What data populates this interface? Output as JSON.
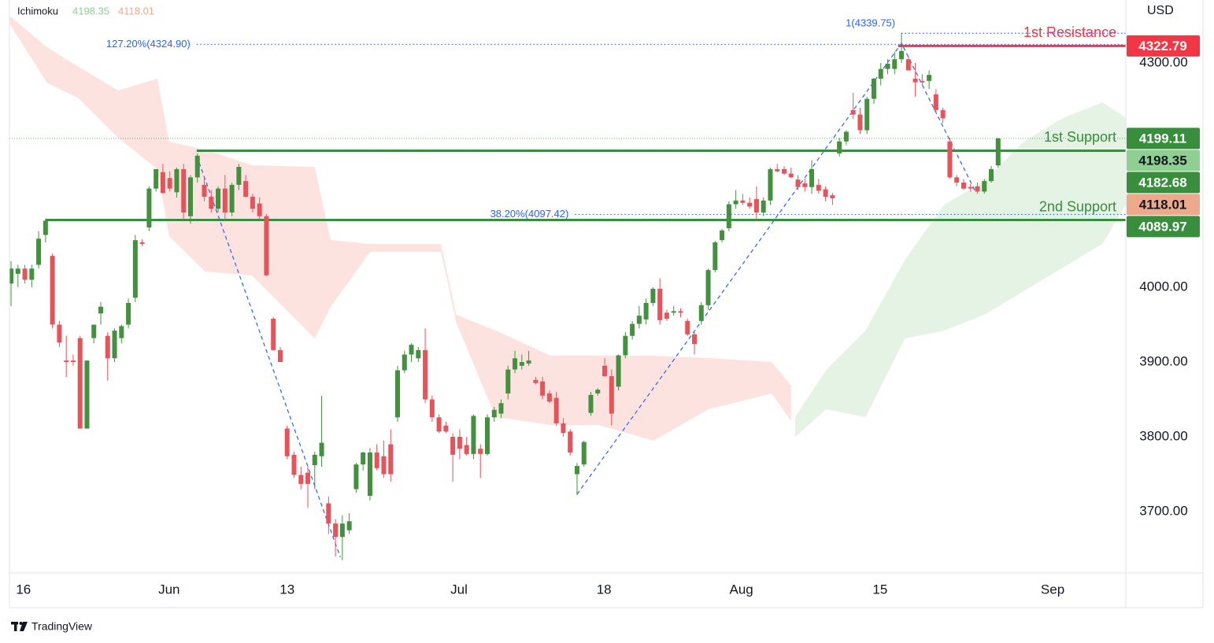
{
  "chart_data": {
    "type": "candlestick",
    "brand": "TradingView",
    "indicator": {
      "name": "Ichimoku",
      "values": [
        4198.35,
        4118.01
      ],
      "colors": [
        "#8fcf91",
        "#eda98c"
      ]
    },
    "currency": "USD",
    "up_color": "#43913f",
    "down_color": "#e5535b",
    "last_price_color": "#388e3c",
    "open": [
      4005,
      4018,
      4025,
      4010,
      4030,
      4070,
      4042,
      3950,
      3902,
      3902,
      3932,
      3811,
      3932,
      3965,
      3935,
      3905,
      3932,
      3950,
      3986,
      4060,
      4080,
      4132,
      4154,
      4146,
      4127,
      4158,
      4095,
      4147,
      4137,
      4121,
      4105,
      4132,
      4100,
      4137,
      4142,
      4121,
      4112,
      4095,
      3958,
      3916,
      3811,
      3776,
      3749,
      3752,
      3762,
      3774,
      3711,
      3684,
      3666,
      3675,
      3730,
      3763,
      3721,
      3779,
      3774,
      3790,
      3826,
      3889,
      3910,
      3905,
      3916,
      3850,
      3826,
      3815,
      3800,
      3800,
      3789,
      3777,
      3784,
      3777,
      3826,
      3831,
      3858,
      3890,
      3895,
      3898,
      3876,
      3874,
      3858,
      3852,
      3818,
      3807,
      3750,
      3763,
      3832,
      3858,
      3895,
      3881,
      3867,
      3909,
      3935,
      3951,
      3957,
      3979,
      3998,
      3966,
      3966,
      3968,
      3955,
      3937,
      3955,
      3976,
      4023,
      4063,
      4079,
      4111,
      4116,
      4113,
      4118,
      4100,
      4116,
      4158,
      4158,
      4152,
      4144,
      4139,
      4134,
      4137,
      4131,
      4123,
      4179,
      4195,
      4237,
      4231,
      4210,
      4252,
      4279,
      4292,
      4292,
      4305,
      4305,
      4279,
      4276,
      4276,
      4258,
      4237,
      4195,
      4147,
      4140,
      4134,
      4135,
      4128,
      4142,
      4163
    ],
    "high": [
      4035,
      4030,
      4030,
      4030,
      4075,
      4092,
      4045,
      3955,
      3935,
      3910,
      3935,
      3902,
      3950,
      3980,
      3940,
      3945,
      3950,
      3985,
      4070,
      4064,
      4135,
      4158,
      4165,
      4155,
      4160,
      4165,
      4150,
      4179,
      4145,
      4130,
      4135,
      4150,
      4140,
      4165,
      4150,
      4125,
      4120,
      4098,
      3960,
      3920,
      3815,
      3780,
      3760,
      3760,
      3780,
      3855,
      3720,
      3690,
      3695,
      3698,
      3765,
      3780,
      3785,
      3790,
      3795,
      3810,
      3895,
      3915,
      3925,
      3920,
      3945,
      3855,
      3830,
      3820,
      3805,
      3810,
      3800,
      3830,
      3790,
      3830,
      3840,
      3850,
      3895,
      3915,
      3910,
      3915,
      3880,
      3880,
      3862,
      3860,
      3825,
      3810,
      3765,
      3795,
      3860,
      3865,
      3905,
      3890,
      3910,
      3940,
      3955,
      3975,
      3985,
      4000,
      4012,
      3970,
      3975,
      3972,
      3958,
      3940,
      3980,
      4025,
      4062,
      4078,
      4115,
      4130,
      4125,
      4120,
      4135,
      4120,
      4160,
      4165,
      4162,
      4160,
      4150,
      4145,
      4170,
      4145,
      4135,
      4126,
      4200,
      4210,
      4260,
      4240,
      4255,
      4280,
      4300,
      4305,
      4315,
      4340,
      4310,
      4300,
      4285,
      4290,
      4265,
      4240,
      4200,
      4150,
      4145,
      4138,
      4140,
      4145,
      4162,
      4200
    ],
    "low": [
      3975,
      4000,
      4005,
      4000,
      4025,
      4060,
      3945,
      3920,
      3880,
      3895,
      3811,
      3811,
      3925,
      3950,
      3875,
      3900,
      3925,
      3945,
      3980,
      4055,
      4075,
      4128,
      4125,
      4128,
      4120,
      4090,
      4085,
      4140,
      4115,
      4100,
      4100,
      4090,
      4095,
      4130,
      4120,
      4100,
      4090,
      4015,
      3915,
      3900,
      3770,
      3745,
      3730,
      3705,
      3730,
      3760,
      3670,
      3640,
      3635,
      3670,
      3725,
      3755,
      3715,
      3755,
      3745,
      3740,
      3820,
      3885,
      3900,
      3900,
      3845,
      3820,
      3805,
      3805,
      3740,
      3770,
      3775,
      3770,
      3745,
      3775,
      3820,
      3825,
      3850,
      3885,
      3890,
      3895,
      3870,
      3850,
      3845,
      3815,
      3800,
      3775,
      3722,
      3760,
      3828,
      3855,
      3880,
      3815,
      3862,
      3905,
      3930,
      3945,
      3950,
      3975,
      3950,
      3955,
      3962,
      3960,
      3935,
      3910,
      3950,
      3970,
      4020,
      4060,
      4075,
      4105,
      4110,
      4105,
      4090,
      4095,
      4110,
      4154,
      4150,
      4146,
      4130,
      4128,
      4125,
      4125,
      4115,
      4110,
      4175,
      4190,
      4225,
      4205,
      4205,
      4245,
      4270,
      4285,
      4285,
      4300,
      4290,
      4255,
      4270,
      4265,
      4235,
      4220,
      4145,
      4135,
      4130,
      4128,
      4125,
      4125,
      4140,
      4160
    ],
    "close": [
      4025,
      4025,
      4010,
      4025,
      4065,
      4089,
      3950,
      3926,
      3900,
      3900,
      3811,
      3902,
      3950,
      3974,
      3905,
      3942,
      3948,
      3979,
      4063,
      4058,
      4132,
      4158,
      4126,
      4132,
      4158,
      4100,
      4147,
      4176,
      4121,
      4105,
      4132,
      4100,
      4137,
      4161,
      4121,
      4105,
      4095,
      4016,
      3916,
      3900,
      3774,
      3749,
      3737,
      3737,
      3776,
      3792,
      3684,
      3666,
      3684,
      3687,
      3763,
      3779,
      3779,
      3758,
      3750,
      3750,
      3889,
      3910,
      3923,
      3916,
      3850,
      3826,
      3807,
      3807,
      3776,
      3784,
      3777,
      3828,
      3777,
      3826,
      3836,
      3845,
      3890,
      3905,
      3900,
      3902,
      3872,
      3855,
      3847,
      3818,
      3805,
      3779,
      3761,
      3793,
      3856,
      3863,
      3881,
      3831,
      3909,
      3935,
      3951,
      3962,
      3979,
      3998,
      3956,
      3958,
      3968,
      3966,
      3937,
      3924,
      3976,
      4023,
      4060,
      4076,
      4111,
      4116,
      4113,
      4108,
      4100,
      4116,
      4158,
      4155,
      4152,
      4147,
      4134,
      4134,
      4158,
      4129,
      4121,
      4119,
      4195,
      4208,
      4231,
      4210,
      4252,
      4279,
      4292,
      4299,
      4305,
      4316,
      4290,
      4274,
      4274,
      4284,
      4237,
      4226,
      4147,
      4140,
      4132,
      4132,
      4128,
      4142,
      4158,
      4199.11
    ],
    "xlim": [
      -0.23,
      161.5
    ],
    "xticks": [
      {
        "value": 1.8,
        "label": "16"
      },
      {
        "value": 22.9,
        "label": "Jun"
      },
      {
        "value": 40.0,
        "label": "13"
      },
      {
        "value": 64.9,
        "label": "Jul"
      },
      {
        "value": 85.9,
        "label": "18"
      },
      {
        "value": 105.8,
        "label": "Aug"
      },
      {
        "value": 125.9,
        "label": "15"
      },
      {
        "value": 150.9,
        "label": "Sep"
      }
    ],
    "ylim": [
      3617.9,
      4384.2
    ],
    "yticks": [
      {
        "value": 3700,
        "label": "3700.00"
      },
      {
        "value": 3800,
        "label": "3800.00"
      },
      {
        "value": 3900,
        "label": "3900.00"
      },
      {
        "value": 4000,
        "label": "4000.00"
      },
      {
        "value": 4300,
        "label": "4300.00"
      }
    ],
    "clouds": [
      {
        "color": "#fde3e0",
        "x": [
          -0.23,
          5.2,
          9.8,
          15.5,
          21.2,
          22.9,
          28.1,
          34.9,
          44.0,
          46.3,
          52.0,
          62.3,
          64.5,
          70.2,
          78.2,
          85.1,
          93.1,
          101.0,
          110.2,
          113.0
        ],
        "upper": [
          4363.1,
          4321.0,
          4294.7,
          4263.2,
          4278.9,
          4194.7,
          4184.2,
          4163.2,
          4161.0,
          4063.2,
          4057.9,
          4057.9,
          3963.2,
          3942.1,
          3908.4,
          3908.4,
          3908.4,
          3905.3,
          3900.0,
          3868.4
        ],
        "lower": [
          4352.6,
          4273.7,
          4252.6,
          4200.0,
          4157.9,
          4068.4,
          4021.1,
          4015.8,
          3931.6,
          3973.7,
          4047.4,
          4047.4,
          3952.6,
          3826.3,
          3815.8,
          3815.8,
          3794.7,
          3836.8,
          3857.9,
          3821.1
        ]
      },
      {
        "color": "#e5f3e5",
        "x": [
          113.6,
          118.1,
          123.8,
          129.5,
          135.2,
          141.0,
          146.7,
          152.4,
          158.1,
          161.5
        ],
        "upper": [
          3826.3,
          3889.5,
          3942.1,
          4036.8,
          4110.5,
          4142.1,
          4194.7,
          4226.3,
          4247.4,
          4226.3
        ],
        "lower": [
          3800.0,
          3836.8,
          3826.3,
          3931.6,
          3942.1,
          3963.2,
          3994.7,
          4026.3,
          4057.9,
          4110.5
        ]
      }
    ],
    "levels": [
      {
        "name": "1st Resistance",
        "value": 4322.79,
        "start": 128.5,
        "color": "#f23645"
      },
      {
        "name": "1st Support",
        "value": 4182.68,
        "start": 26.9,
        "color": "#388e3c"
      },
      {
        "name": "2nd Support",
        "value": 4089.97,
        "start": 5.0,
        "color": "#388e3c"
      }
    ],
    "fib_color": "#2962ff",
    "fib_levels": [
      {
        "label": "127.20%(4324.90)",
        "value": 4324.9,
        "start": 26.9
      },
      {
        "label": "1(4339.75)",
        "value": 4339.75,
        "start": 129.0
      },
      {
        "label": "38.20%(4097.42)",
        "value": 4097.42,
        "start": 81.7
      }
    ],
    "trend_lines": [
      {
        "x": [
          26.9,
          47.7
        ],
        "y": [
          4175.8,
          3638.9
        ]
      },
      {
        "x": [
          82.0,
          129.0,
          139.8
        ],
        "y": [
          3723.2,
          4326.3,
          4126.3
        ]
      }
    ]
  }
}
